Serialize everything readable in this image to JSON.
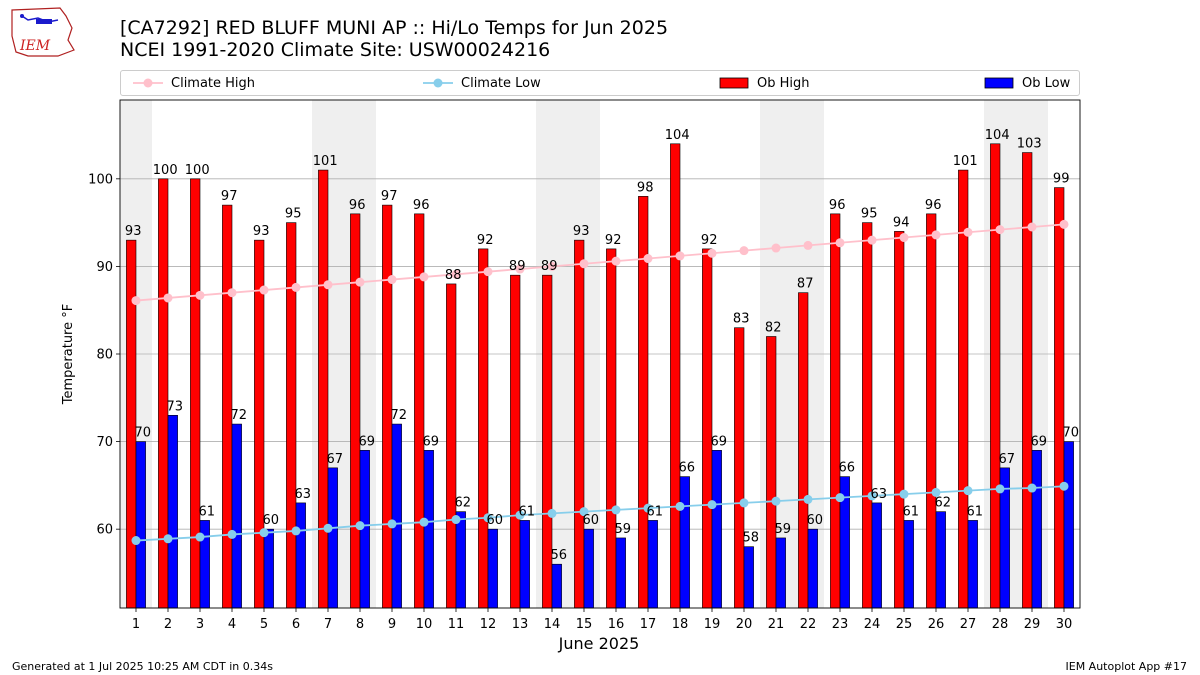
{
  "logo": {
    "text": "IEM"
  },
  "header": {
    "title_line1": "[CA7292] RED BLUFF MUNI AP :: Hi/Lo Temps for Jun 2025",
    "title_line2": "NCEI 1991-2020 Climate Site: USW00024216"
  },
  "legend": [
    {
      "label": "Climate High",
      "kind": "line",
      "color": "#ffc0cb"
    },
    {
      "label": "Climate Low",
      "kind": "line",
      "color": "#87ceeb"
    },
    {
      "label": "Ob High",
      "kind": "bar",
      "color": "#ff0000"
    },
    {
      "label": "Ob Low",
      "kind": "bar",
      "color": "#0000ff"
    }
  ],
  "footer": {
    "left": "Generated at 1 Jul 2025 10:25 AM CDT in 0.34s",
    "right": "IEM Autoplot App #17"
  },
  "chart_data": {
    "type": "bar",
    "xlabel": "June 2025",
    "ylabel": "Temperature °F",
    "ylim": [
      51,
      109
    ],
    "yticks": [
      60,
      70,
      80,
      90,
      100
    ],
    "grid": "horizontal",
    "legend_position": "top",
    "categories": [
      "1",
      "2",
      "3",
      "4",
      "5",
      "6",
      "7",
      "8",
      "9",
      "10",
      "11",
      "12",
      "13",
      "14",
      "15",
      "16",
      "17",
      "18",
      "19",
      "20",
      "21",
      "22",
      "23",
      "24",
      "25",
      "26",
      "27",
      "28",
      "29",
      "30"
    ],
    "weekend_shading": [
      [
        1,
        1
      ],
      [
        7,
        8
      ],
      [
        14,
        15
      ],
      [
        21,
        22
      ],
      [
        28,
        29
      ]
    ],
    "shade_color": "#efefef",
    "series": [
      {
        "name": "Ob High",
        "kind": "bar",
        "color": "#ff0000",
        "values": [
          93,
          100,
          100,
          97,
          93,
          95,
          101,
          96,
          97,
          96,
          88,
          92,
          89,
          89,
          93,
          92,
          98,
          104,
          92,
          83,
          82,
          87,
          96,
          95,
          94,
          96,
          101,
          104,
          103,
          99
        ]
      },
      {
        "name": "Ob Low",
        "kind": "bar",
        "color": "#0000ff",
        "values": [
          70,
          73,
          61,
          72,
          60,
          63,
          67,
          69,
          72,
          69,
          62,
          60,
          61,
          56,
          60,
          59,
          61,
          66,
          69,
          58,
          59,
          60,
          66,
          63,
          61,
          62,
          61,
          67,
          69,
          70
        ]
      },
      {
        "name": "Climate High",
        "kind": "line",
        "color": "#ffc0cb",
        "values": [
          86.1,
          86.4,
          86.7,
          87.0,
          87.3,
          87.6,
          87.9,
          88.2,
          88.5,
          88.8,
          89.1,
          89.4,
          89.7,
          90.0,
          90.3,
          90.6,
          90.9,
          91.2,
          91.5,
          91.8,
          92.1,
          92.4,
          92.7,
          93.0,
          93.3,
          93.6,
          93.9,
          94.2,
          94.5,
          94.8
        ]
      },
      {
        "name": "Climate Low",
        "kind": "line",
        "color": "#87ceeb",
        "values": [
          58.7,
          58.9,
          59.1,
          59.4,
          59.6,
          59.8,
          60.1,
          60.4,
          60.6,
          60.8,
          61.1,
          61.3,
          61.6,
          61.8,
          62.0,
          62.2,
          62.4,
          62.6,
          62.8,
          63.0,
          63.2,
          63.4,
          63.6,
          63.8,
          64.0,
          64.2,
          64.4,
          64.6,
          64.7,
          64.9
        ]
      }
    ]
  }
}
